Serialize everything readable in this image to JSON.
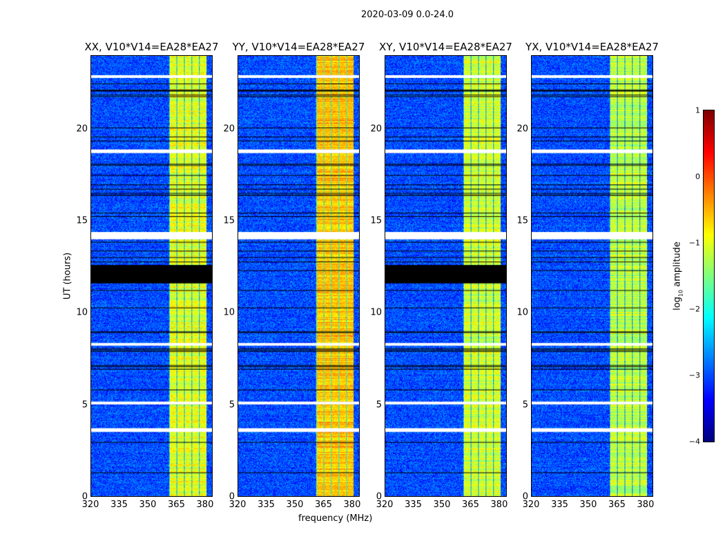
{
  "chart_data": {
    "type": "heatmap",
    "title": "2020-03-09 0.0-24.0",
    "xlabel": "frequency (MHz)",
    "ylabel": "UT (hours)",
    "xlim": [
      320,
      384
    ],
    "ylim": [
      0,
      24
    ],
    "xticks": [
      "320",
      "335",
      "350",
      "365",
      "380"
    ],
    "yticks": [
      "0",
      "5",
      "10",
      "15",
      "20"
    ],
    "colorbar": {
      "label_main": "log",
      "label_sub": "10",
      "label_rest": " amplitude",
      "range": [
        -4,
        1
      ],
      "ticks": [
        "1",
        "0",
        "−1",
        "−2",
        "−3",
        "−4"
      ],
      "colormap": "jet"
    },
    "panels": [
      {
        "title": "XX, V10*V14=EA28*EA27",
        "band_level": -1.0,
        "flag_gap": [
          11.6,
          12.6
        ]
      },
      {
        "title": "YY, V10*V14=EA28*EA27",
        "band_level": -0.6,
        "flag_gap": null
      },
      {
        "title": "XY, V10*V14=EA28*EA27",
        "band_level": -1.1,
        "flag_gap": [
          11.6,
          12.6
        ]
      },
      {
        "title": "YX, V10*V14=EA28*EA27",
        "band_level": -1.2,
        "flag_gap": null
      }
    ],
    "background_level": -3.0,
    "rfi_band_mhz": [
      361,
      381
    ],
    "white_flag_hours": [
      [
        14.0,
        14.4
      ],
      [
        3.5,
        3.7
      ],
      [
        5.0,
        5.15
      ],
      [
        8.2,
        8.35
      ],
      [
        18.7,
        18.9
      ],
      [
        22.8,
        22.95
      ]
    ]
  }
}
